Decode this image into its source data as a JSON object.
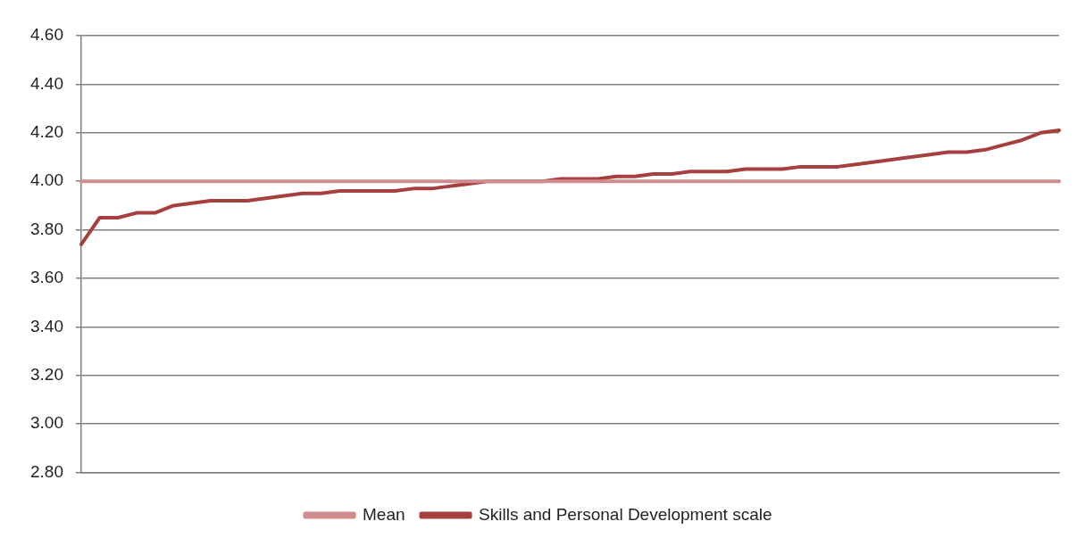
{
  "chart_data": {
    "type": "line",
    "categories": [
      null,
      null,
      null,
      null,
      null,
      null,
      null,
      null,
      null,
      null,
      null,
      null,
      null,
      null,
      null,
      null,
      null,
      null,
      null,
      null,
      null,
      null,
      null,
      null,
      null,
      null,
      null,
      null,
      null,
      null,
      null,
      null,
      null,
      null,
      null,
      null,
      null,
      null,
      null,
      null,
      null,
      null,
      null,
      null,
      null,
      null,
      null,
      null,
      null,
      null,
      null,
      null,
      null,
      null
    ],
    "series": [
      {
        "name": "Mean",
        "color": "#d08c8c",
        "values": [
          4,
          4,
          4,
          4,
          4,
          4,
          4,
          4,
          4,
          4,
          4,
          4,
          4,
          4,
          4,
          4,
          4,
          4,
          4,
          4,
          4,
          4,
          4,
          4,
          4,
          4,
          4,
          4,
          4,
          4,
          4,
          4,
          4,
          4,
          4,
          4,
          4,
          4,
          4,
          4,
          4,
          4,
          4,
          4,
          4,
          4,
          4,
          4,
          4,
          4,
          4,
          4,
          4,
          4
        ]
      },
      {
        "name": "Skills and Personal Development scale",
        "color": "#a6403e",
        "values": [
          3.74,
          3.85,
          3.85,
          3.87,
          3.87,
          3.9,
          3.91,
          3.92,
          3.92,
          3.92,
          3.93,
          3.94,
          3.95,
          3.95,
          3.96,
          3.96,
          3.96,
          3.96,
          3.97,
          3.97,
          3.98,
          3.99,
          4.0,
          4.0,
          4.0,
          4.0,
          4.01,
          4.01,
          4.01,
          4.02,
          4.02,
          4.03,
          4.03,
          4.04,
          4.04,
          4.04,
          4.05,
          4.05,
          4.05,
          4.06,
          4.06,
          4.06,
          4.07,
          4.08,
          4.09,
          4.1,
          4.11,
          4.12,
          4.12,
          4.13,
          4.15,
          4.17,
          4.2,
          4.21
        ]
      }
    ],
    "ylim": [
      2.8,
      4.6
    ],
    "yticks": [
      {
        "value": 2.8,
        "label": "2.80"
      },
      {
        "value": 3.0,
        "label": "3.00"
      },
      {
        "value": 3.2,
        "label": "3.20"
      },
      {
        "value": 3.4,
        "label": "3.40"
      },
      {
        "value": 3.6,
        "label": "3.60"
      },
      {
        "value": 3.8,
        "label": "3.80"
      },
      {
        "value": 4.0,
        "label": "4.00"
      },
      {
        "value": 4.2,
        "label": "4.20"
      },
      {
        "value": 4.4,
        "label": "4.40"
      },
      {
        "value": 4.6,
        "label": "4.60"
      }
    ],
    "grid": "y",
    "legend": "bottom",
    "marker": "none",
    "line_style": "solid"
  }
}
